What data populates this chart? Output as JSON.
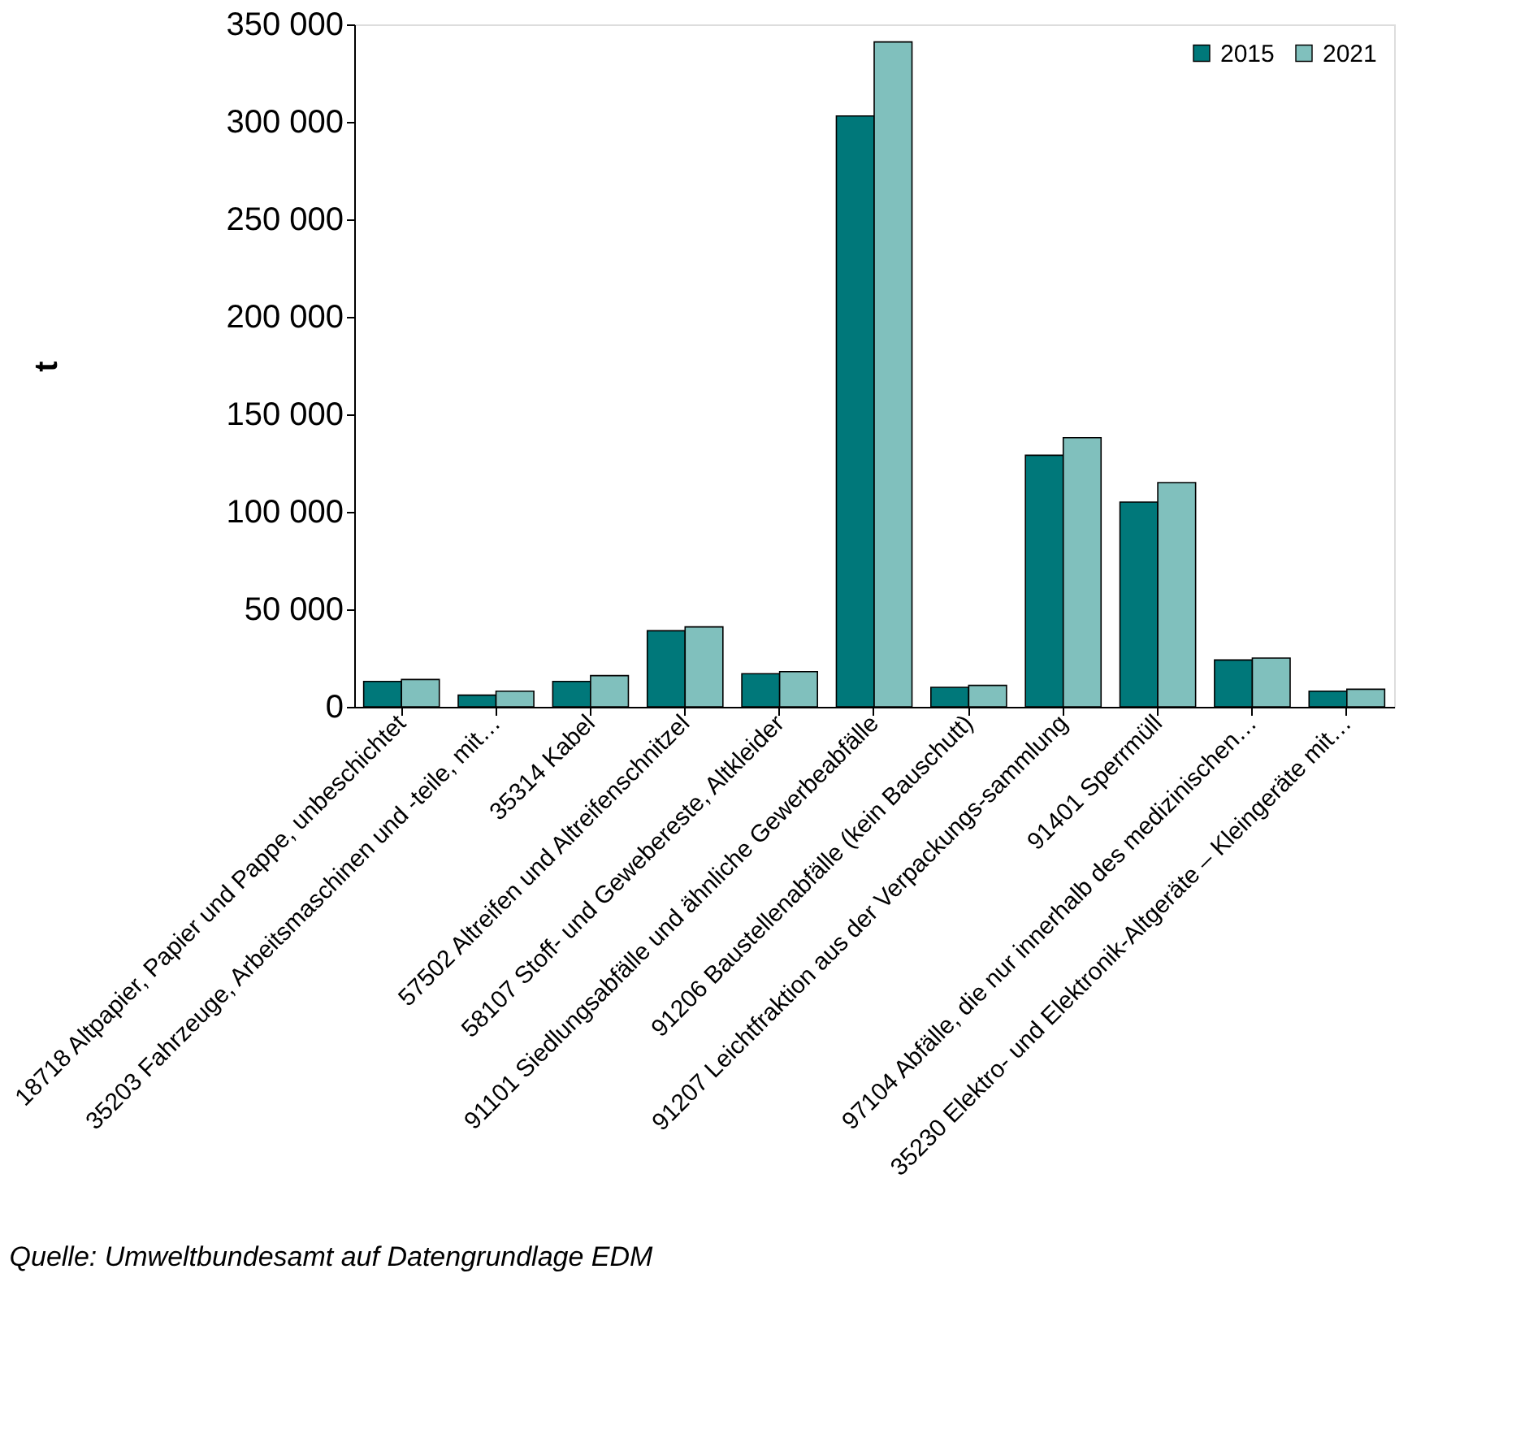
{
  "chart_data": {
    "type": "bar",
    "ylabel": "t",
    "categories": [
      "18718 Altpapier, Papier und Pappe, unbeschichtet",
      "35203 Fahrzeuge, Arbeitsmaschinen und -teile, mit…",
      "35314 Kabel",
      "57502 Altreifen und Altreifenschnitzel",
      "58107 Stoff- und Gewebereste, Altkleider",
      "91101 Siedlungsabfälle und ähnliche Gewerbeabfälle",
      "91206 Baustellenabfälle (kein Bauschutt)",
      "91207 Leichtfraktion aus der Verpackungs-sammlung",
      "91401 Sperrmüll",
      "97104 Abfälle, die nur innerhalb des medizinischen…",
      "35230 Elektro- und Elektronik-Altgeräte – Kleingeräte mit…"
    ],
    "series": [
      {
        "name": "2015",
        "color": "#00787a",
        "values": [
          13000,
          6000,
          13000,
          39000,
          17000,
          303000,
          10000,
          129000,
          105000,
          24000,
          8000
        ]
      },
      {
        "name": "2021",
        "color": "#80c0bd",
        "values": [
          14000,
          8000,
          16000,
          41000,
          18000,
          341000,
          11000,
          138000,
          115000,
          25000,
          9000
        ]
      }
    ],
    "ylim": [
      0,
      350000
    ],
    "yticks": [
      {
        "value": 0,
        "label": "0"
      },
      {
        "value": 50000,
        "label": "50 000"
      },
      {
        "value": 100000,
        "label": "100 000"
      },
      {
        "value": 150000,
        "label": "150 000"
      },
      {
        "value": 200000,
        "label": "200 000"
      },
      {
        "value": 250000,
        "label": "250 000"
      },
      {
        "value": 300000,
        "label": "300 000"
      },
      {
        "value": 350000,
        "label": "350 000"
      }
    ],
    "grid": false,
    "legend": "top right",
    "annotations": [
      "Quelle: Umweltbundesamt auf Datengrundlage EDM"
    ]
  }
}
